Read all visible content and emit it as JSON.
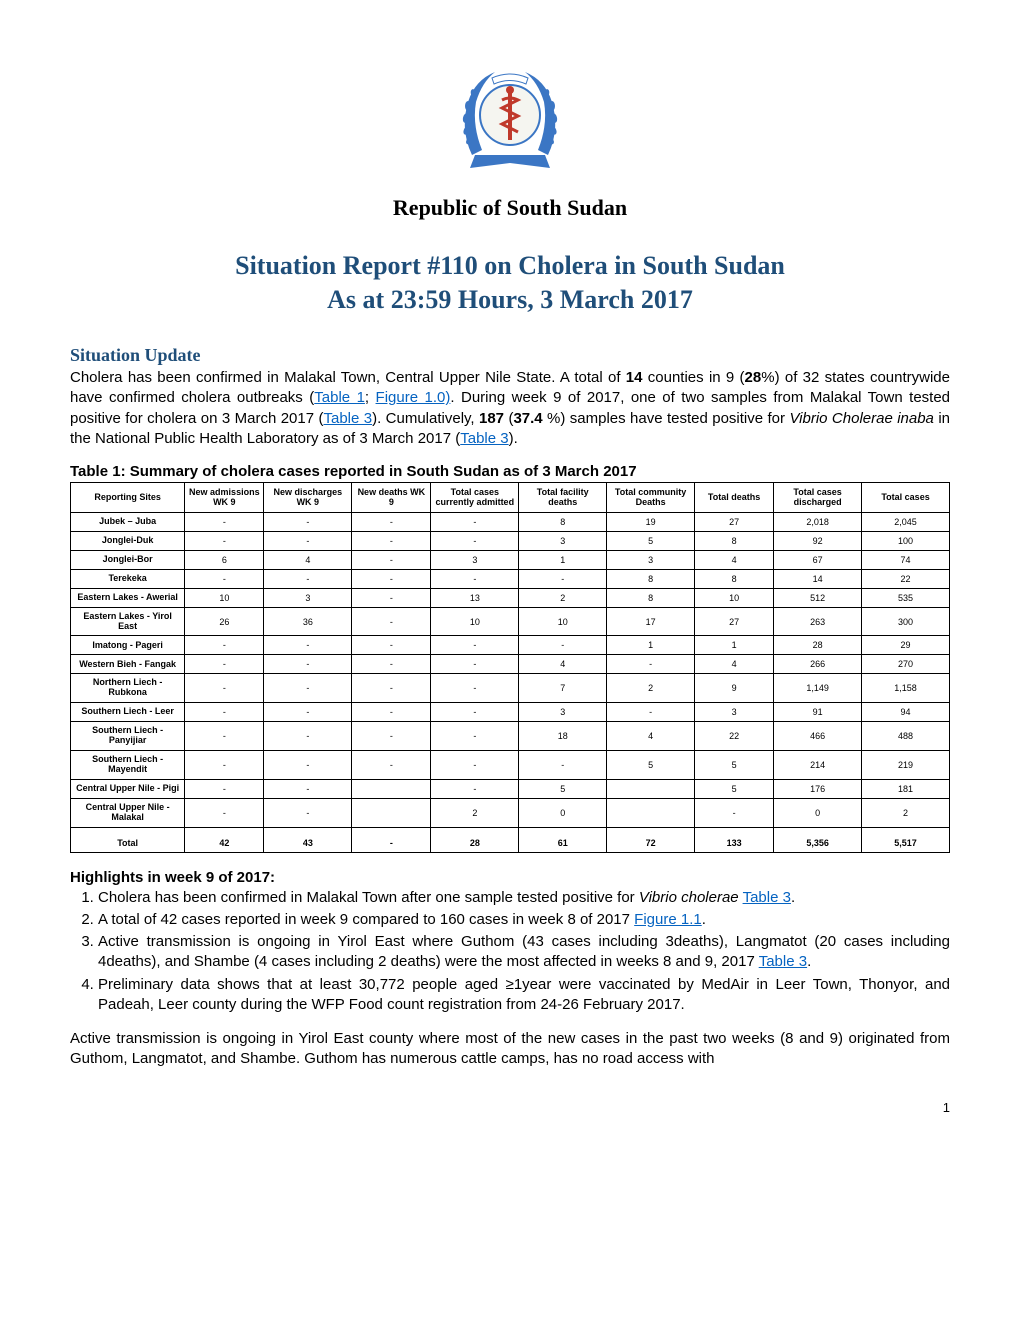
{
  "logo": {
    "laurel_color": "#3b76c4",
    "circle_stroke": "#3b76c4",
    "staff_color": "#c0392b",
    "banner_fill": "#3b76c4",
    "text_top": "Ministry of Health",
    "text_bottom": "Republic of South Sudan"
  },
  "header": {
    "country": "Republic of South Sudan",
    "title": "Situation Report #110 on Cholera in South Sudan",
    "subtitle": "As at 23:59 Hours, 3 March 2017",
    "title_color": "#1f4e79"
  },
  "situation_update": {
    "heading": "Situation Update",
    "heading_color": "#1f4e79",
    "p1_a": "Cholera has been confirmed in Malakal Town, Central Upper Nile State. A total of ",
    "p1_b": "14",
    "p1_c": " counties in 9 (",
    "p1_d": "28",
    "p1_e": "%) of 32 states countrywide have confirmed cholera outbreaks (",
    "link_t1": "Table 1",
    "p1_f": "; ",
    "link_f10": "Figure 1.0)",
    "p1_g": ". During week 9 of 2017, one of two samples from Malakal Town tested positive for cholera on 3 March 2017 (",
    "link_t3a": "Table 3",
    "p1_h": "). Cumulatively, ",
    "p1_i": "187",
    "p1_j": " (",
    "p1_k": "37.4",
    "p1_l": " %) samples have tested positive for ",
    "p1_m": "Vibrio Cholerae inaba",
    "p1_n": " in the National Public Health Laboratory as of 3 March 2017 (",
    "link_t3b": "Table 3",
    "p1_o": ")."
  },
  "table1": {
    "caption": "Table 1: Summary of cholera cases reported in South Sudan as of 3 March 2017",
    "columns": [
      "Reporting Sites",
      "New admissions WK 9",
      "New discharges WK 9",
      "New deaths WK 9",
      "Total cases currently admitted",
      "Total facility deaths",
      "Total community Deaths",
      "Total deaths",
      "Total cases discharged",
      "Total cases"
    ],
    "col_widths": [
      "13%",
      "9%",
      "10%",
      "9%",
      "10%",
      "10%",
      "10%",
      "9%",
      "10%",
      "10%"
    ],
    "rows": [
      [
        "Jubek – Juba",
        "-",
        "-",
        "-",
        "-",
        "8",
        "19",
        "27",
        "2,018",
        "2,045"
      ],
      [
        "Jonglei-Duk",
        "-",
        "-",
        "-",
        "-",
        "3",
        "5",
        "8",
        "92",
        "100"
      ],
      [
        "Jonglei-Bor",
        "6",
        "4",
        "-",
        "3",
        "1",
        "3",
        "4",
        "67",
        "74"
      ],
      [
        "Terekeka",
        "-",
        "-",
        "-",
        "-",
        "-",
        "8",
        "8",
        "14",
        "22"
      ],
      [
        "Eastern Lakes - Awerial",
        "10",
        "3",
        "-",
        "13",
        "2",
        "8",
        "10",
        "512",
        "535"
      ],
      [
        "Eastern Lakes - Yirol East",
        "26",
        "36",
        "-",
        "10",
        "10",
        "17",
        "27",
        "263",
        "300"
      ],
      [
        "Imatong - Pageri",
        "-",
        "-",
        "-",
        "-",
        "-",
        "1",
        "1",
        "28",
        "29"
      ],
      [
        "Western Bieh - Fangak",
        "-",
        "-",
        "-",
        "-",
        "4",
        "-",
        "4",
        "266",
        "270"
      ],
      [
        "Northern Liech - Rubkona",
        "-",
        "-",
        "-",
        "-",
        "7",
        "2",
        "9",
        "1,149",
        "1,158"
      ],
      [
        "Southern Liech - Leer",
        "-",
        "-",
        "-",
        "-",
        "3",
        "-",
        "3",
        "91",
        "94"
      ],
      [
        "Southern Liech - Panyijiar",
        "-",
        "-",
        "-",
        "-",
        "18",
        "4",
        "22",
        "466",
        "488"
      ],
      [
        "Southern Liech - Mayendit",
        "-",
        "-",
        "-",
        "-",
        "-",
        "5",
        "5",
        "214",
        "219"
      ],
      [
        "Central Upper Nile - Pigi",
        "-",
        "-",
        "",
        "-",
        "5",
        "",
        "5",
        "176",
        "181"
      ],
      [
        "Central Upper Nile - Malakal",
        "-",
        "-",
        "",
        "2",
        "0",
        "",
        "-",
        "0",
        "2"
      ]
    ],
    "total_row": [
      "Total",
      "42",
      "43",
      "-",
      "28",
      "61",
      "72",
      "133",
      "5,356",
      "5,517"
    ]
  },
  "highlights": {
    "heading": "Highlights in week 9 of 2017:",
    "item1_a": "Cholera has been confirmed in Malakal Town after one sample tested positive for ",
    "item1_b": "Vibrio cholerae",
    "item1_c": " ",
    "item1_link": "Table 3",
    "item1_d": ".",
    "item2_a": "A total of 42 cases reported in week 9 compared to 160 cases in week 8 of 2017 ",
    "item2_link": "Figure 1.1",
    "item2_b": ".",
    "item3_a": "Active transmission is ongoing in Yirol East where Guthom (43 cases including 3deaths), Langmatot (20 cases including 4deaths), and Shambe (4 cases including 2 deaths) were the most affected in weeks 8 and 9, 2017 ",
    "item3_link": "Table 3",
    "item3_b": ".",
    "item4": "Preliminary data shows that at least 30,772 people aged ≥1year were vaccinated by MedAir in Leer Town, Thonyor, and Padeah, Leer county during the WFP Food count registration from 24-26 February 2017."
  },
  "closing_para": "Active transmission is ongoing in Yirol East county where most of the new cases in the past two weeks (8 and 9) originated from Guthom, Langmatot, and Shambe. Guthom has numerous cattle camps, has no road access with",
  "page_number": "1",
  "link_color": "#0563c1"
}
